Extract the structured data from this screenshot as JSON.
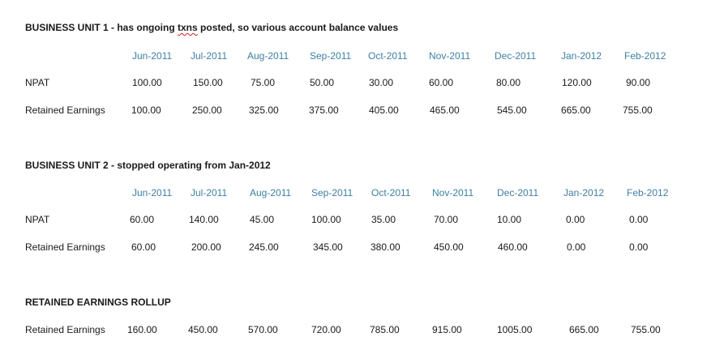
{
  "sections": [
    {
      "title_bold": "BUSINESS UNIT 1  - has ongoing ",
      "title_flagged": "txns",
      "title_rest": " posted, so various account balance values",
      "months": [
        "Jun-2011",
        "Jul-2011",
        "Aug-2011",
        "Sep-2011",
        "Oct-2011",
        "Nov-2011",
        "Dec-2011",
        "Jan-2012",
        "Feb-2012"
      ],
      "rows": [
        {
          "label": "NPAT",
          "values": [
            "100.00",
            "150.00",
            "75.00",
            "50.00",
            "30.00",
            "60.00",
            "80.00",
            "120.00",
            "90.00"
          ]
        },
        {
          "label": "Retained Earnings",
          "values": [
            "100.00",
            "250.00",
            "325.00",
            "375.00",
            "405.00",
            "465.00",
            "545.00",
            "665.00",
            "755.00"
          ]
        }
      ]
    },
    {
      "title": "BUSINESS UNIT 2  - stopped operating from Jan-2012",
      "months": [
        "Jun-2011",
        "Jul-2011",
        "Aug-2011",
        "Sep-2011",
        "Oct-2011",
        "Nov-2011",
        "Dec-2011",
        "Jan-2012",
        "Feb-2012"
      ],
      "rows": [
        {
          "label": "NPAT",
          "values": [
            "60.00",
            "140.00",
            "45.00",
            "100.00",
            "35.00",
            "70.00",
            "10.00",
            "0.00",
            "0.00"
          ]
        },
        {
          "label": "Retained Earnings",
          "values": [
            "60.00",
            "200.00",
            "245.00",
            "345.00",
            "380.00",
            "450.00",
            "460.00",
            "0.00",
            "0.00"
          ]
        }
      ]
    },
    {
      "title": "RETAINED EARNINGS ROLLUP",
      "rows": [
        {
          "label": "Retained Earnings",
          "values": [
            "160.00",
            "450.00",
            "570.00",
            "720.00",
            "785.00",
            "915.00",
            "1005.00",
            "665.00",
            "755.00"
          ]
        }
      ]
    }
  ]
}
